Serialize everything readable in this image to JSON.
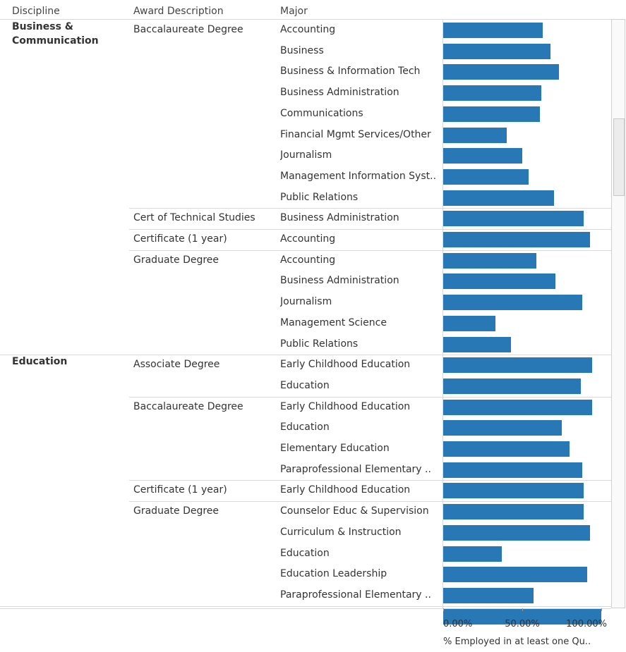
{
  "headers": {
    "discipline": "Discipline",
    "award": "Award Description",
    "major": "Major"
  },
  "chart_data": {
    "type": "bar",
    "orientation": "horizontal",
    "x_axis_label": "% Employed in at least one Qu..",
    "x_ticks": [
      "0.00%",
      "50.00%",
      "100.00%"
    ],
    "xlim": [
      0,
      100
    ],
    "bar_color": "#2778b4",
    "groups": [
      {
        "discipline": "Business & Communication",
        "awards": [
          {
            "award": "Baccalaureate Degree",
            "majors": [
              {
                "major": "Accounting",
                "value": 63
              },
              {
                "major": "Business",
                "value": 68
              },
              {
                "major": "Business & Information Tech",
                "value": 73
              },
              {
                "major": "Business Administration",
                "value": 62
              },
              {
                "major": "Communications",
                "value": 61
              },
              {
                "major": "Financial Mgmt Services/Other",
                "value": 40
              },
              {
                "major": "Journalism",
                "value": 50
              },
              {
                "major": "Management Information Syst..",
                "value": 54
              },
              {
                "major": "Public Relations",
                "value": 70
              }
            ]
          },
          {
            "award": "Cert of Technical Studies",
            "majors": [
              {
                "major": "Business Administration",
                "value": 89
              }
            ]
          },
          {
            "award": "Certificate (1 year)",
            "majors": [
              {
                "major": "Accounting",
                "value": 93
              }
            ]
          },
          {
            "award": "Graduate Degree",
            "majors": [
              {
                "major": "Accounting",
                "value": 59
              },
              {
                "major": "Business Administration",
                "value": 71
              },
              {
                "major": "Journalism",
                "value": 88
              },
              {
                "major": "Management Science",
                "value": 33
              },
              {
                "major": "Public Relations",
                "value": 43
              }
            ]
          }
        ]
      },
      {
        "discipline": "Education",
        "awards": [
          {
            "award": "Associate Degree",
            "majors": [
              {
                "major": "Early Childhood Education",
                "value": 94
              },
              {
                "major": "Education",
                "value": 87
              }
            ]
          },
          {
            "award": "Baccalaureate Degree",
            "majors": [
              {
                "major": "Early Childhood Education",
                "value": 94
              },
              {
                "major": "Education",
                "value": 75
              },
              {
                "major": "Elementary Education",
                "value": 80
              },
              {
                "major": "Paraprofessional Elementary ..",
                "value": 88
              }
            ]
          },
          {
            "award": "Certificate (1 year)",
            "majors": [
              {
                "major": "Early Childhood Education",
                "value": 89
              }
            ]
          },
          {
            "award": "Graduate Degree",
            "majors": [
              {
                "major": "Counselor Educ & Supervision",
                "value": 89
              },
              {
                "major": "Curriculum & Instruction",
                "value": 93
              },
              {
                "major": "Education",
                "value": 37
              },
              {
                "major": "Education Leadership",
                "value": 91
              },
              {
                "major": "Paraprofessional Elementary ..",
                "value": 57
              }
            ]
          }
        ]
      }
    ],
    "partial_next_row": {
      "value": 100
    }
  }
}
